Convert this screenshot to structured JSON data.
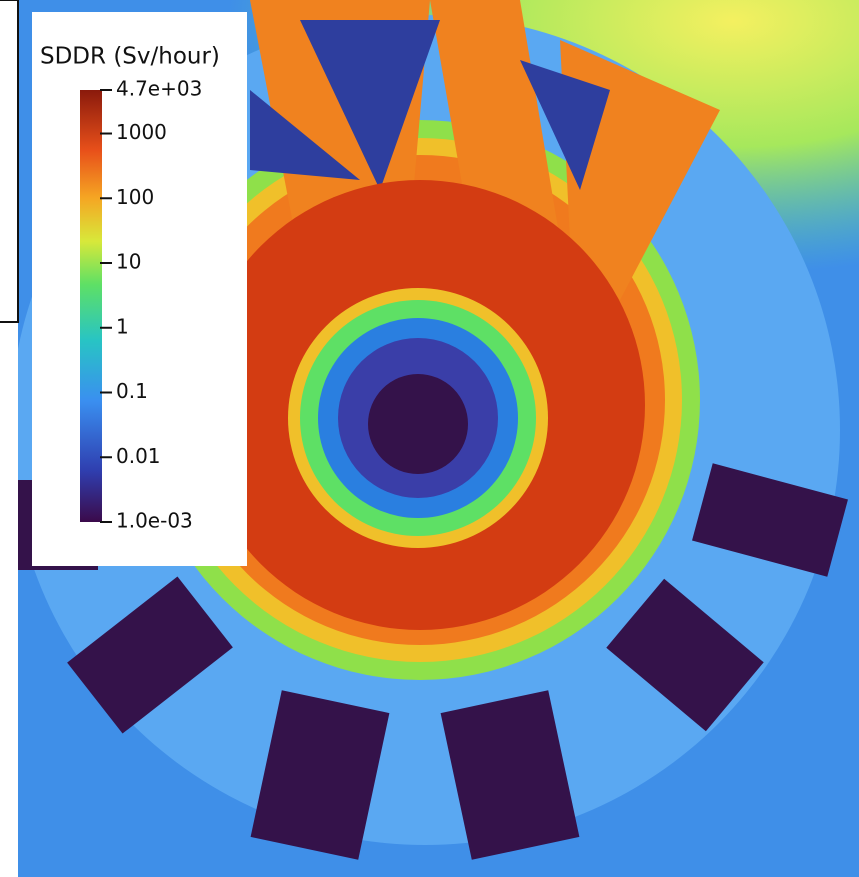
{
  "colorbar": {
    "title": "SDDR (Sv/hour)",
    "log": true,
    "ticks": [
      {
        "value": 4700,
        "label": "4.7e+03"
      },
      1000,
      100,
      10,
      1,
      0.1,
      0.01,
      {
        "value": 0.001,
        "label": "1.0e-03"
      }
    ]
  }
}
